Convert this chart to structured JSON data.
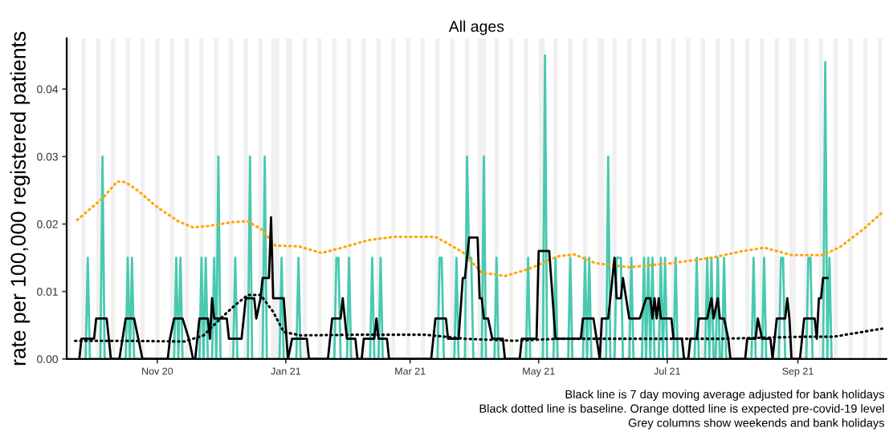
{
  "chart_data": {
    "type": "line",
    "title": "All ages",
    "ylabel": "rate per 100,000 registered patients",
    "xlim": [
      "2020-09-19",
      "2021-10-13"
    ],
    "xticks": [
      {
        "value": "2020-11-01",
        "label": "Nov 20"
      },
      {
        "value": "2021-01-01",
        "label": "Jan 21"
      },
      {
        "value": "2021-03-01",
        "label": "Mar 21"
      },
      {
        "value": "2021-05-01",
        "label": "May 21"
      },
      {
        "value": "2021-07-01",
        "label": "Jul 21"
      },
      {
        "value": "2021-09-01",
        "label": "Sep 21"
      }
    ],
    "ylim": [
      0,
      0.0475
    ],
    "yticks": [
      {
        "value": 0,
        "label": "0.00"
      },
      {
        "value": 0.01,
        "label": "0.01"
      },
      {
        "value": 0.02,
        "label": "0.02"
      },
      {
        "value": 0.03,
        "label": "0.03"
      },
      {
        "value": 0.04,
        "label": "0.04"
      }
    ],
    "grid": false,
    "series": [
      {
        "color": "#48c9b0",
        "line_style": "solid",
        "x": [
          "2020-09-28",
          "2020-09-29",
          "2020-09-30",
          "2020-10-05",
          "2020-10-06",
          "2020-10-07",
          "2020-10-17",
          "2020-10-18",
          "2020-10-19",
          "2020-10-20",
          "2020-10-21",
          "2020-11-09",
          "2020-11-10",
          "2020-11-11",
          "2020-11-12",
          "2020-11-13",
          "2020-11-21",
          "2020-11-22",
          "2020-11-23",
          "2020-11-24",
          "2020-11-25",
          "2020-11-27",
          "2020-11-28",
          "2020-11-29",
          "2020-11-30",
          "2020-12-01",
          "2020-12-07",
          "2020-12-08",
          "2020-12-09",
          "2020-12-14",
          "2020-12-15",
          "2020-12-16",
          "2020-12-21",
          "2020-12-22",
          "2020-12-23",
          "2020-12-29",
          "2020-12-30",
          "2020-12-31",
          "2021-01-06",
          "2021-01-07",
          "2021-01-08",
          "2021-01-24",
          "2021-01-25",
          "2021-01-26",
          "2021-01-27",
          "2021-01-30",
          "2021-01-31",
          "2021-02-01",
          "2021-02-10",
          "2021-02-11",
          "2021-02-12",
          "2021-02-14",
          "2021-02-15",
          "2021-02-16",
          "2021-03-14",
          "2021-03-15",
          "2021-03-16",
          "2021-03-17",
          "2021-03-22",
          "2021-03-23",
          "2021-03-24",
          "2021-03-27",
          "2021-03-28",
          "2021-03-29",
          "2021-03-30",
          "2021-03-31",
          "2021-04-04",
          "2021-04-05",
          "2021-04-06",
          "2021-04-10",
          "2021-04-11",
          "2021-04-12",
          "2021-04-25",
          "2021-04-26",
          "2021-04-27",
          "2021-05-03",
          "2021-05-04",
          "2021-05-05",
          "2021-05-08",
          "2021-05-09",
          "2021-05-10",
          "2021-05-15",
          "2021-05-16",
          "2021-05-17",
          "2021-05-22",
          "2021-05-23",
          "2021-05-24",
          "2021-05-25",
          "2021-05-26",
          "2021-06-02",
          "2021-06-03",
          "2021-06-04",
          "2021-06-06",
          "2021-06-07",
          "2021-06-08",
          "2021-06-09",
          "2021-06-10",
          "2021-06-13",
          "2021-06-14",
          "2021-06-15",
          "2021-06-19",
          "2021-06-20",
          "2021-06-21",
          "2021-06-22",
          "2021-06-23",
          "2021-06-24",
          "2021-06-25",
          "2021-06-27",
          "2021-06-28",
          "2021-06-29",
          "2021-06-30",
          "2021-07-01",
          "2021-07-04",
          "2021-07-05",
          "2021-07-06",
          "2021-07-14",
          "2021-07-15",
          "2021-07-16",
          "2021-07-19",
          "2021-07-20",
          "2021-07-21",
          "2021-07-22",
          "2021-07-23",
          "2021-07-24",
          "2021-07-25",
          "2021-07-26",
          "2021-07-27",
          "2021-07-28",
          "2021-07-29",
          "2021-08-10",
          "2021-08-11",
          "2021-08-12",
          "2021-08-15",
          "2021-08-16",
          "2021-08-17",
          "2021-08-23",
          "2021-08-24",
          "2021-08-25",
          "2021-08-26",
          "2021-09-05",
          "2021-09-06",
          "2021-09-07",
          "2021-09-08",
          "2021-09-13",
          "2021-09-14",
          "2021-09-15",
          "2021-09-16",
          "2021-09-17"
        ],
        "values": [
          0,
          0.015,
          0,
          0,
          0.03,
          0,
          0,
          0.015,
          0,
          0.015,
          0,
          0,
          0.015,
          0,
          0.015,
          0,
          0,
          0.015,
          0,
          0.015,
          0,
          0,
          0.015,
          0,
          0.03,
          0,
          0,
          0.015,
          0,
          0,
          0.03,
          0,
          0,
          0.03,
          0,
          0,
          0.015,
          0,
          0,
          0.015,
          0,
          0,
          0.015,
          0.015,
          0,
          0,
          0.015,
          0,
          0,
          0.015,
          0,
          0,
          0.015,
          0,
          0,
          0.015,
          0.015,
          0,
          0,
          0.015,
          0,
          0,
          0.03,
          0.015,
          0.015,
          0,
          0,
          0.03,
          0,
          0,
          0.015,
          0,
          0,
          0.015,
          0,
          0,
          0.045,
          0,
          0,
          0.015,
          0,
          0,
          0.015,
          0,
          0,
          0.015,
          0,
          0.015,
          0,
          0,
          0.03,
          0,
          0,
          0.015,
          0.015,
          0.015,
          0,
          0,
          0.015,
          0,
          0,
          0.015,
          0,
          0.015,
          0,
          0.015,
          0,
          0,
          0.015,
          0,
          0.015,
          0,
          0,
          0.015,
          0,
          0,
          0.015,
          0,
          0,
          0.015,
          0,
          0.015,
          0,
          0,
          0.015,
          0,
          0,
          0.015,
          0,
          0,
          0.015,
          0,
          0,
          0.015,
          0,
          0,
          0.015,
          0.015,
          0,
          0,
          0.015,
          0.015,
          0,
          0,
          0.044,
          0,
          0.015,
          0
        ]
      },
      {
        "color": "#ffa500",
        "line_style": "dotted",
        "x": [
          "2020-09-24",
          "2020-10-06",
          "2020-10-13",
          "2020-10-17",
          "2020-10-23",
          "2020-11-01",
          "2020-11-11",
          "2020-11-18",
          "2020-11-25",
          "2020-12-07",
          "2020-12-14",
          "2020-12-21",
          "2020-12-27",
          "2021-01-07",
          "2021-01-18",
          "2021-01-29",
          "2021-02-09",
          "2021-02-21",
          "2021-03-13",
          "2021-03-19",
          "2021-03-26",
          "2021-04-04",
          "2021-04-15",
          "2021-04-26",
          "2021-05-10",
          "2021-05-18",
          "2021-05-28",
          "2021-06-13",
          "2021-07-03",
          "2021-07-22",
          "2021-08-06",
          "2021-08-16",
          "2021-08-29",
          "2021-09-13",
          "2021-09-21",
          "2021-10-02",
          "2021-10-11"
        ],
        "values": [
          0.0206,
          0.0238,
          0.0263,
          0.0262,
          0.0249,
          0.0225,
          0.0204,
          0.0195,
          0.0197,
          0.0203,
          0.0204,
          0.0191,
          0.0168,
          0.0167,
          0.0157,
          0.0166,
          0.0176,
          0.0181,
          0.0181,
          0.0171,
          0.0158,
          0.0128,
          0.0123,
          0.0133,
          0.0152,
          0.0155,
          0.0142,
          0.0136,
          0.0142,
          0.015,
          0.016,
          0.0165,
          0.0154,
          0.0154,
          0.0166,
          0.0192,
          0.0217
        ]
      },
      {
        "color": "#000000",
        "line_style": "dotted",
        "x": [
          "2020-09-23",
          "2020-10-14",
          "2020-11-14",
          "2020-11-23",
          "2020-12-01",
          "2020-12-08",
          "2020-12-14",
          "2020-12-20",
          "2020-12-26",
          "2020-12-31",
          "2021-01-08",
          "2021-02-05",
          "2021-03-08",
          "2021-03-27",
          "2021-04-19",
          "2021-05-11",
          "2021-06-18",
          "2021-07-27",
          "2021-09-04",
          "2021-09-18",
          "2021-10-11"
        ],
        "values": [
          0.0027,
          0.0027,
          0.0026,
          0.0035,
          0.006,
          0.008,
          0.0095,
          0.0095,
          0.007,
          0.004,
          0.0035,
          0.0036,
          0.0036,
          0.003,
          0.0027,
          0.003,
          0.003,
          0.003,
          0.0033,
          0.0033,
          0.0045
        ]
      },
      {
        "color": "#000000",
        "line_style": "solid",
        "x": [
          "2020-09-25",
          "2020-09-26",
          "2020-10-02",
          "2020-10-03",
          "2020-10-08",
          "2020-10-10",
          "2020-10-14",
          "2020-10-17",
          "2020-10-21",
          "2020-10-25",
          "2020-11-06",
          "2020-11-07",
          "2020-11-09",
          "2020-11-13",
          "2020-11-16",
          "2020-11-18",
          "2020-11-19",
          "2020-11-21",
          "2020-11-25",
          "2020-11-26",
          "2020-11-27",
          "2020-11-28",
          "2020-12-04",
          "2020-12-05",
          "2020-12-11",
          "2020-12-13",
          "2020-12-17",
          "2020-12-18",
          "2020-12-20",
          "2020-12-21",
          "2020-12-24",
          "2020-12-25",
          "2020-12-26",
          "2020-12-31",
          "2021-01-02",
          "2021-01-04",
          "2021-01-11",
          "2021-01-12",
          "2021-01-21",
          "2021-01-23",
          "2021-01-27",
          "2021-01-28",
          "2021-01-30",
          "2021-02-03",
          "2021-02-04",
          "2021-02-06",
          "2021-02-07",
          "2021-02-12",
          "2021-02-13",
          "2021-02-14",
          "2021-02-18",
          "2021-02-19",
          "2021-03-11",
          "2021-03-13",
          "2021-03-18",
          "2021-03-19",
          "2021-03-24",
          "2021-03-26",
          "2021-03-27",
          "2021-03-29",
          "2021-04-02",
          "2021-04-03",
          "2021-04-04",
          "2021-04-05",
          "2021-04-07",
          "2021-04-09",
          "2021-04-14",
          "2021-04-15",
          "2021-04-22",
          "2021-04-23",
          "2021-04-30",
          "2021-05-01",
          "2021-05-06",
          "2021-05-09",
          "2021-05-21",
          "2021-05-22",
          "2021-05-27",
          "2021-05-30",
          "2021-05-31",
          "2021-06-03",
          "2021-06-06",
          "2021-06-07",
          "2021-06-09",
          "2021-06-10",
          "2021-06-13",
          "2021-06-18",
          "2021-06-21",
          "2021-06-23",
          "2021-06-24",
          "2021-06-25",
          "2021-06-26",
          "2021-06-27",
          "2021-06-28",
          "2021-07-03",
          "2021-07-04",
          "2021-07-08",
          "2021-07-09",
          "2021-07-11",
          "2021-07-12",
          "2021-07-15",
          "2021-07-16",
          "2021-07-20",
          "2021-07-22",
          "2021-07-23",
          "2021-07-25",
          "2021-07-26",
          "2021-07-28",
          "2021-07-30",
          "2021-07-31",
          "2021-08-07",
          "2021-08-08",
          "2021-08-12",
          "2021-08-13",
          "2021-08-15",
          "2021-08-19",
          "2021-08-20",
          "2021-08-22",
          "2021-08-26",
          "2021-08-27",
          "2021-08-28",
          "2021-08-29",
          "2021-09-02",
          "2021-09-04",
          "2021-09-09",
          "2021-09-10",
          "2021-09-11",
          "2021-09-12",
          "2021-09-13",
          "2021-09-15"
        ],
        "values": [
          0,
          0.003,
          0.003,
          0.006,
          0.006,
          0,
          0,
          0.006,
          0.006,
          0,
          0,
          0.003,
          0.006,
          0.006,
          0.003,
          0,
          0,
          0.006,
          0.006,
          0.003,
          0.009,
          0.006,
          0.006,
          0.003,
          0.003,
          0.009,
          0.009,
          0.006,
          0.009,
          0.012,
          0.012,
          0.021,
          0.009,
          0.009,
          0,
          0.003,
          0.003,
          0,
          0,
          0.006,
          0.006,
          0.009,
          0.003,
          0.003,
          0,
          0,
          0.003,
          0.003,
          0.006,
          0.003,
          0.003,
          0,
          0,
          0.006,
          0.006,
          0.003,
          0.003,
          0.012,
          0.012,
          0.018,
          0.018,
          0.009,
          0.009,
          0.006,
          0.006,
          0.003,
          0.003,
          0,
          0,
          0.003,
          0.003,
          0.016,
          0.016,
          0.003,
          0.003,
          0.006,
          0.006,
          0,
          0.006,
          0.006,
          0.015,
          0.009,
          0.009,
          0.012,
          0.006,
          0.006,
          0.009,
          0.009,
          0.006,
          0.009,
          0.006,
          0.009,
          0.006,
          0.006,
          0.003,
          0.003,
          0,
          0,
          0.003,
          0.003,
          0.006,
          0.006,
          0.009,
          0.006,
          0.009,
          0.006,
          0.006,
          0.003,
          0,
          0,
          0.003,
          0.003,
          0.006,
          0.003,
          0.003,
          0,
          0.006,
          0.006,
          0.009,
          0.006,
          0,
          0,
          0.006,
          0.006,
          0.003,
          0.009,
          0.009,
          0.012,
          0.012
        ]
      }
    ],
    "bands": [
      {
        "axis": "x",
        "from": "2020-09-19",
        "to": "2020-09-21",
        "color": "#f0f0f0"
      },
      {
        "axis": "x",
        "from": "2020-09-26",
        "to": "2020-09-28",
        "color": "#f0f0f0"
      },
      {
        "axis": "x",
        "from": "2020-10-03",
        "to": "2020-10-05",
        "color": "#f0f0f0"
      },
      {
        "axis": "x",
        "from": "2020-10-10",
        "to": "2020-10-12",
        "color": "#f0f0f0"
      },
      {
        "axis": "x",
        "from": "2020-10-17",
        "to": "2020-10-19",
        "color": "#f0f0f0"
      },
      {
        "axis": "x",
        "from": "2020-10-24",
        "to": "2020-10-26",
        "color": "#f0f0f0"
      },
      {
        "axis": "x",
        "from": "2020-10-31",
        "to": "2020-11-02",
        "color": "#f0f0f0"
      },
      {
        "axis": "x",
        "from": "2020-11-07",
        "to": "2020-11-09",
        "color": "#f0f0f0"
      },
      {
        "axis": "x",
        "from": "2020-11-14",
        "to": "2020-11-16",
        "color": "#f0f0f0"
      },
      {
        "axis": "x",
        "from": "2020-11-21",
        "to": "2020-11-23",
        "color": "#f0f0f0"
      },
      {
        "axis": "x",
        "from": "2020-11-28",
        "to": "2020-11-30",
        "color": "#f0f0f0"
      },
      {
        "axis": "x",
        "from": "2020-12-05",
        "to": "2020-12-07",
        "color": "#f0f0f0"
      },
      {
        "axis": "x",
        "from": "2020-12-12",
        "to": "2020-12-14",
        "color": "#f0f0f0"
      },
      {
        "axis": "x",
        "from": "2020-12-19",
        "to": "2020-12-21",
        "color": "#f0f0f0"
      },
      {
        "axis": "x",
        "from": "2020-12-25",
        "to": "2020-12-29",
        "color": "#f0f0f0"
      },
      {
        "axis": "x",
        "from": "2021-01-01",
        "to": "2021-01-04",
        "color": "#f0f0f0"
      },
      {
        "axis": "x",
        "from": "2021-01-09",
        "to": "2021-01-11",
        "color": "#f0f0f0"
      },
      {
        "axis": "x",
        "from": "2021-01-16",
        "to": "2021-01-18",
        "color": "#f0f0f0"
      },
      {
        "axis": "x",
        "from": "2021-01-23",
        "to": "2021-01-25",
        "color": "#f0f0f0"
      },
      {
        "axis": "x",
        "from": "2021-01-30",
        "to": "2021-02-01",
        "color": "#f0f0f0"
      },
      {
        "axis": "x",
        "from": "2021-02-06",
        "to": "2021-02-08",
        "color": "#f0f0f0"
      },
      {
        "axis": "x",
        "from": "2021-02-13",
        "to": "2021-02-15",
        "color": "#f0f0f0"
      },
      {
        "axis": "x",
        "from": "2021-02-20",
        "to": "2021-02-22",
        "color": "#f0f0f0"
      },
      {
        "axis": "x",
        "from": "2021-02-27",
        "to": "2021-03-01",
        "color": "#f0f0f0"
      },
      {
        "axis": "x",
        "from": "2021-03-06",
        "to": "2021-03-08",
        "color": "#f0f0f0"
      },
      {
        "axis": "x",
        "from": "2021-03-13",
        "to": "2021-03-15",
        "color": "#f0f0f0"
      },
      {
        "axis": "x",
        "from": "2021-03-20",
        "to": "2021-03-22",
        "color": "#f0f0f0"
      },
      {
        "axis": "x",
        "from": "2021-03-27",
        "to": "2021-03-29",
        "color": "#f0f0f0"
      },
      {
        "axis": "x",
        "from": "2021-04-02",
        "to": "2021-04-06",
        "color": "#f0f0f0"
      },
      {
        "axis": "x",
        "from": "2021-04-10",
        "to": "2021-04-12",
        "color": "#f0f0f0"
      },
      {
        "axis": "x",
        "from": "2021-04-17",
        "to": "2021-04-19",
        "color": "#f0f0f0"
      },
      {
        "axis": "x",
        "from": "2021-04-24",
        "to": "2021-04-26",
        "color": "#f0f0f0"
      },
      {
        "axis": "x",
        "from": "2021-05-01",
        "to": "2021-05-04",
        "color": "#f0f0f0"
      },
      {
        "axis": "x",
        "from": "2021-05-08",
        "to": "2021-05-10",
        "color": "#f0f0f0"
      },
      {
        "axis": "x",
        "from": "2021-05-15",
        "to": "2021-05-17",
        "color": "#f0f0f0"
      },
      {
        "axis": "x",
        "from": "2021-05-22",
        "to": "2021-05-24",
        "color": "#f0f0f0"
      },
      {
        "axis": "x",
        "from": "2021-05-29",
        "to": "2021-06-01",
        "color": "#f0f0f0"
      },
      {
        "axis": "x",
        "from": "2021-06-05",
        "to": "2021-06-07",
        "color": "#f0f0f0"
      },
      {
        "axis": "x",
        "from": "2021-06-12",
        "to": "2021-06-14",
        "color": "#f0f0f0"
      },
      {
        "axis": "x",
        "from": "2021-06-19",
        "to": "2021-06-21",
        "color": "#f0f0f0"
      },
      {
        "axis": "x",
        "from": "2021-06-26",
        "to": "2021-06-28",
        "color": "#f0f0f0"
      },
      {
        "axis": "x",
        "from": "2021-07-03",
        "to": "2021-07-05",
        "color": "#f0f0f0"
      },
      {
        "axis": "x",
        "from": "2021-07-10",
        "to": "2021-07-12",
        "color": "#f0f0f0"
      },
      {
        "axis": "x",
        "from": "2021-07-17",
        "to": "2021-07-19",
        "color": "#f0f0f0"
      },
      {
        "axis": "x",
        "from": "2021-07-24",
        "to": "2021-07-26",
        "color": "#f0f0f0"
      },
      {
        "axis": "x",
        "from": "2021-07-31",
        "to": "2021-08-02",
        "color": "#f0f0f0"
      },
      {
        "axis": "x",
        "from": "2021-08-07",
        "to": "2021-08-09",
        "color": "#f0f0f0"
      },
      {
        "axis": "x",
        "from": "2021-08-14",
        "to": "2021-08-16",
        "color": "#f0f0f0"
      },
      {
        "axis": "x",
        "from": "2021-08-21",
        "to": "2021-08-23",
        "color": "#f0f0f0"
      },
      {
        "axis": "x",
        "from": "2021-08-28",
        "to": "2021-08-31",
        "color": "#f0f0f0"
      },
      {
        "axis": "x",
        "from": "2021-09-04",
        "to": "2021-09-06",
        "color": "#f0f0f0"
      },
      {
        "axis": "x",
        "from": "2021-09-11",
        "to": "2021-09-13",
        "color": "#f0f0f0"
      },
      {
        "axis": "x",
        "from": "2021-09-18",
        "to": "2021-09-20",
        "color": "#f0f0f0"
      },
      {
        "axis": "x",
        "from": "2021-09-25",
        "to": "2021-09-27",
        "color": "#f0f0f0"
      },
      {
        "axis": "x",
        "from": "2021-10-02",
        "to": "2021-10-04",
        "color": "#f0f0f0"
      },
      {
        "axis": "x",
        "from": "2021-10-09",
        "to": "2021-10-11",
        "color": "#f0f0f0"
      }
    ],
    "annotations": [
      "Black line is 7 day moving average adjusted for bank holidays",
      "Black dotted line is baseline. Orange dotted line is expected pre-covid-19 level",
      "Grey columns show weekends and bank holidays"
    ]
  }
}
